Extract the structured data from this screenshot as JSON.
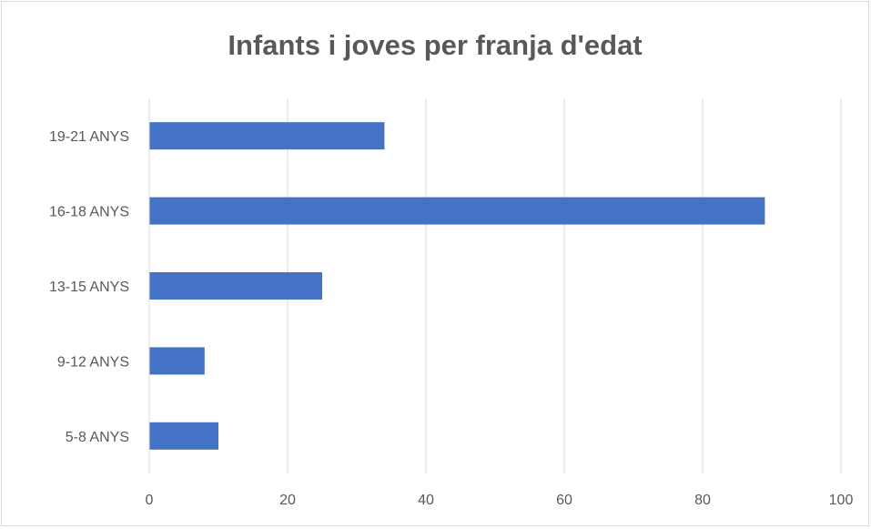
{
  "chart_data": {
    "type": "bar",
    "orientation": "horizontal",
    "title": "Infants i joves per franja d'edat",
    "categories": [
      "5-8 ANYS",
      "9-12 ANYS",
      "13-15 ANYS",
      "16-18 ANYS",
      "19-21 ANYS"
    ],
    "values": [
      10,
      8,
      25,
      89,
      34
    ],
    "xlim": [
      0,
      100
    ],
    "x_ticks": [
      0,
      20,
      40,
      60,
      80,
      100
    ],
    "grid": "vertical",
    "legend": "none",
    "bar_color": "#4472c4",
    "grid_color": "#d9d9d9",
    "text_color": "#595959"
  }
}
